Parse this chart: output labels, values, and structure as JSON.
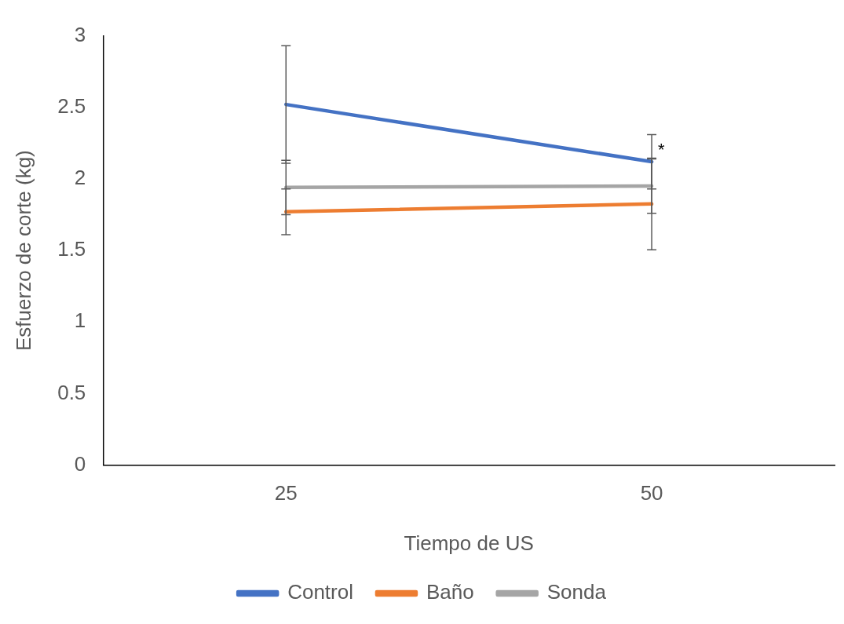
{
  "chart_data": {
    "type": "line",
    "xlabel": "Tiempo de US",
    "ylabel": "Esfuerzo de corte (kg)",
    "categories": [
      "25",
      "50"
    ],
    "series": [
      {
        "name": "Control",
        "color": "#4472c4",
        "values": [
          2.52,
          2.12
        ],
        "errors": [
          0.41,
          0.19
        ]
      },
      {
        "name": "Baño",
        "color": "#ed7d31",
        "values": [
          1.77,
          1.825
        ],
        "errors": [
          0.16,
          0.32
        ]
      },
      {
        "name": "Sonda",
        "color": "#a5a5a5",
        "values": [
          1.94,
          1.95
        ],
        "errors": [
          0.19,
          0.19
        ]
      }
    ],
    "annotations": [
      {
        "text": "*",
        "x": "50",
        "y": 2.2
      }
    ],
    "ylim": [
      0,
      3
    ],
    "yticks": [
      0,
      0.5,
      1,
      1.5,
      2,
      2.5,
      3
    ],
    "grid": false,
    "legend": "bottom",
    "marker": "none",
    "line_style": "solid"
  }
}
